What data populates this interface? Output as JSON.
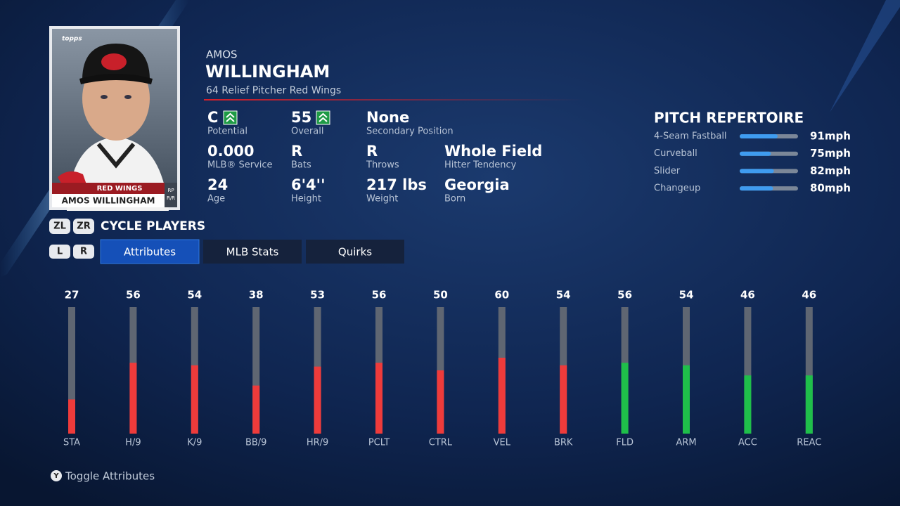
{
  "player": {
    "first_name": "AMOS",
    "last_name": "WILLINGHAM",
    "subtitle": "64 Relief Pitcher Red Wings"
  },
  "card": {
    "brand": "topps",
    "team": "RED WINGS",
    "name": "AMOS WILLINGHAM",
    "position": "RP",
    "bats_throws": "R/R"
  },
  "info": [
    [
      {
        "value": "C",
        "label": "Potential"
      },
      {
        "value": "55",
        "label": "Overall"
      },
      {
        "value": "None",
        "label": "Secondary Position"
      }
    ],
    [
      {
        "value": "0.000",
        "label": "MLB® Service"
      },
      {
        "value": "R",
        "label": "Bats"
      },
      {
        "value": "R",
        "label": "Throws"
      },
      {
        "value": "Whole Field",
        "label": "Hitter Tendency"
      }
    ],
    [
      {
        "value": "24",
        "label": "Age"
      },
      {
        "value": "6'4''",
        "label": "Height"
      },
      {
        "value": "217 lbs",
        "label": "Weight"
      },
      {
        "value": "Georgia",
        "label": "Born"
      }
    ]
  ],
  "pitch_repertoire": {
    "title": "PITCH REPERTOIRE",
    "bar_range": [
      0,
      140
    ],
    "pitches": [
      {
        "name": "4-Seam Fastball",
        "speed": 91,
        "speed_label": "91mph"
      },
      {
        "name": "Curveball",
        "speed": 75,
        "speed_label": "75mph"
      },
      {
        "name": "Slider",
        "speed": 82,
        "speed_label": "82mph"
      },
      {
        "name": "Changeup",
        "speed": 80,
        "speed_label": "80mph"
      }
    ]
  },
  "cycle": {
    "buttons": [
      "ZL",
      "ZR"
    ],
    "label": "CYCLE PLAYERS"
  },
  "tabs": {
    "buttons": [
      "L",
      "R"
    ],
    "items": [
      "Attributes",
      "MLB Stats",
      "Quirks"
    ]
  },
  "attributes": {
    "range": [
      0,
      100
    ],
    "items": [
      {
        "name": "STA",
        "value": 27,
        "color": "#ee3b3b"
      },
      {
        "name": "H/9",
        "value": 56,
        "color": "#ee3b3b"
      },
      {
        "name": "K/9",
        "value": 54,
        "color": "#ee3b3b"
      },
      {
        "name": "BB/9",
        "value": 38,
        "color": "#ee3b3b"
      },
      {
        "name": "HR/9",
        "value": 53,
        "color": "#ee3b3b"
      },
      {
        "name": "PCLT",
        "value": 56,
        "color": "#ee3b3b"
      },
      {
        "name": "CTRL",
        "value": 50,
        "color": "#ee3b3b"
      },
      {
        "name": "VEL",
        "value": 60,
        "color": "#ee3b3b"
      },
      {
        "name": "BRK",
        "value": 54,
        "color": "#ee3b3b"
      },
      {
        "name": "FLD",
        "value": 56,
        "color": "#1fbf4a"
      },
      {
        "name": "ARM",
        "value": 54,
        "color": "#1fbf4a"
      },
      {
        "name": "ACC",
        "value": 46,
        "color": "#1fbf4a"
      },
      {
        "name": "REAC",
        "value": 46,
        "color": "#1fbf4a"
      }
    ]
  },
  "footer": {
    "button": "Y",
    "label": "Toggle Attributes"
  }
}
